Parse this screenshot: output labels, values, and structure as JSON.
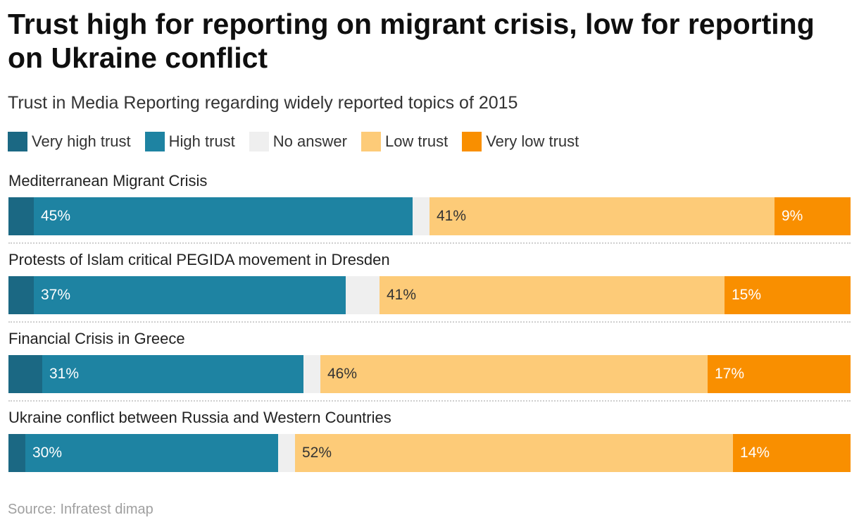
{
  "title": "Trust high for reporting on migrant crisis, low for reporting on Ukraine conflict",
  "subtitle": "Trust in Media Reporting regarding widely reported topics of 2015",
  "source": "Source: Infratest dimap",
  "colors": {
    "very_high": "#1b6883",
    "high": "#1e83a2",
    "no_answer": "#efefef",
    "low": "#fdcb78",
    "very_low": "#f98f00"
  },
  "chart_data": {
    "type": "bar",
    "orientation": "horizontal",
    "stacked": true,
    "unit": "%",
    "title": "Trust high for reporting on migrant crisis, low for reporting on Ukraine conflict",
    "subtitle": "Trust in Media Reporting regarding widely reported topics of 2015",
    "xlim": [
      0,
      100
    ],
    "legend_position": "top-left",
    "categories": [
      "Mediterranean Migrant Crisis",
      "Protests of Islam critical PEGIDA movement in Dresden",
      "Financial Crisis in Greece",
      "Ukraine conflict between Russia and Western Countries"
    ],
    "series": [
      {
        "name": "Very high trust",
        "key": "very_high",
        "values": [
          3,
          3,
          4,
          2
        ],
        "show_labels": false
      },
      {
        "name": "High trust",
        "key": "high",
        "values": [
          45,
          37,
          31,
          30
        ],
        "show_labels": true
      },
      {
        "name": "No answer",
        "key": "no_answer",
        "values": [
          2,
          4,
          2,
          2
        ],
        "show_labels": false
      },
      {
        "name": "Low trust",
        "key": "low",
        "values": [
          41,
          41,
          46,
          52
        ],
        "show_labels": true
      },
      {
        "name": "Very low trust",
        "key": "very_low",
        "values": [
          9,
          15,
          17,
          14
        ],
        "show_labels": true
      }
    ],
    "label_colors": {
      "very_high": "#ffffff",
      "high": "#ffffff",
      "no_answer": "#333333",
      "low": "#333333",
      "very_low": "#ffffff"
    }
  }
}
